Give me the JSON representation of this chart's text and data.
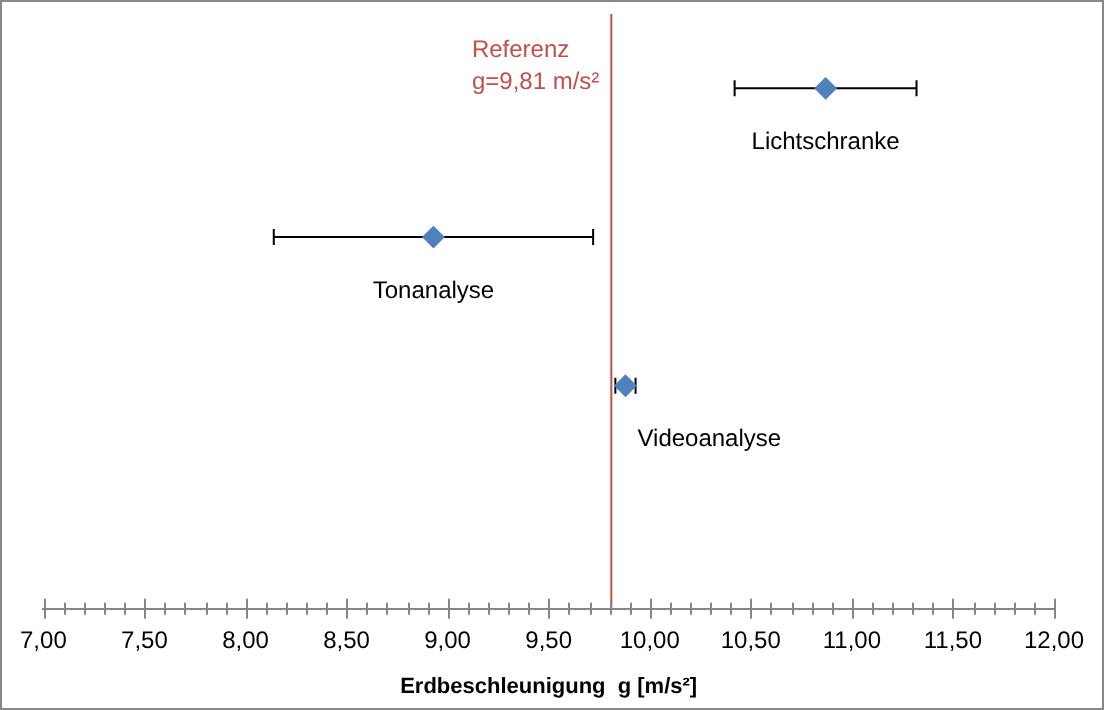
{
  "chart_data": {
    "type": "scatter",
    "orientation": "horizontal",
    "categories": [
      "Lichtschranke",
      "Tonanalyse",
      "Videoanalyse",
      null
    ],
    "values": [
      10.87,
      8.93,
      9.88,
      null
    ],
    "errors": [
      0.45,
      0.79,
      0.05,
      null
    ],
    "color": "#4f81bd",
    "marker": "diamond",
    "xlabel": "Erdbeschleunigung  g [m/s²]",
    "xlim": [
      7,
      12
    ],
    "xticks": [
      {
        "value": 7,
        "label": "7,00"
      },
      {
        "value": 7.1,
        "label": null
      },
      {
        "value": 7.2,
        "label": null
      },
      {
        "value": 7.3,
        "label": null
      },
      {
        "value": 7.4,
        "label": null
      },
      {
        "value": 7.5,
        "label": "7,50"
      },
      {
        "value": 7.6,
        "label": null
      },
      {
        "value": 7.7,
        "label": null
      },
      {
        "value": 7.8,
        "label": null
      },
      {
        "value": 7.9,
        "label": null
      },
      {
        "value": 8,
        "label": "8,00"
      },
      {
        "value": 8.1,
        "label": null
      },
      {
        "value": 8.2,
        "label": null
      },
      {
        "value": 8.3,
        "label": null
      },
      {
        "value": 8.4,
        "label": null
      },
      {
        "value": 8.5,
        "label": "8,50"
      },
      {
        "value": 8.6,
        "label": null
      },
      {
        "value": 8.7,
        "label": null
      },
      {
        "value": 8.8,
        "label": null
      },
      {
        "value": 8.9,
        "label": null
      },
      {
        "value": 9,
        "label": "9,00"
      },
      {
        "value": 9.1,
        "label": null
      },
      {
        "value": 9.2,
        "label": null
      },
      {
        "value": 9.3,
        "label": null
      },
      {
        "value": 9.4,
        "label": null
      },
      {
        "value": 9.5,
        "label": "9,50"
      },
      {
        "value": 9.6,
        "label": null
      },
      {
        "value": 9.7,
        "label": null
      },
      {
        "value": 9.8,
        "label": null
      },
      {
        "value": 9.9,
        "label": null
      },
      {
        "value": 10,
        "label": "10,00"
      },
      {
        "value": 10.1,
        "label": null
      },
      {
        "value": 10.2,
        "label": null
      },
      {
        "value": 10.3,
        "label": null
      },
      {
        "value": 10.4,
        "label": null
      },
      {
        "value": 10.5,
        "label": "10,50"
      },
      {
        "value": 10.6,
        "label": null
      },
      {
        "value": 10.7,
        "label": null
      },
      {
        "value": 10.8,
        "label": null
      },
      {
        "value": 10.9,
        "label": null
      },
      {
        "value": 11,
        "label": "11,00"
      },
      {
        "value": 11.1,
        "label": null
      },
      {
        "value": 11.2,
        "label": null
      },
      {
        "value": 11.3,
        "label": null
      },
      {
        "value": 11.4,
        "label": null
      },
      {
        "value": 11.5,
        "label": "11,50"
      },
      {
        "value": 11.6,
        "label": null
      },
      {
        "value": 11.7,
        "label": null
      },
      {
        "value": 11.8,
        "label": null
      },
      {
        "value": 11.9,
        "label": null
      },
      {
        "value": 12,
        "label": "12,00"
      }
    ],
    "tick_labels": "x",
    "grid": false,
    "legend": false,
    "ref_lines": [
      {
        "axis": "x",
        "value": 9.81,
        "label": "Referenz\ng=9,81 m/s²",
        "color": "#c0504d"
      }
    ]
  }
}
